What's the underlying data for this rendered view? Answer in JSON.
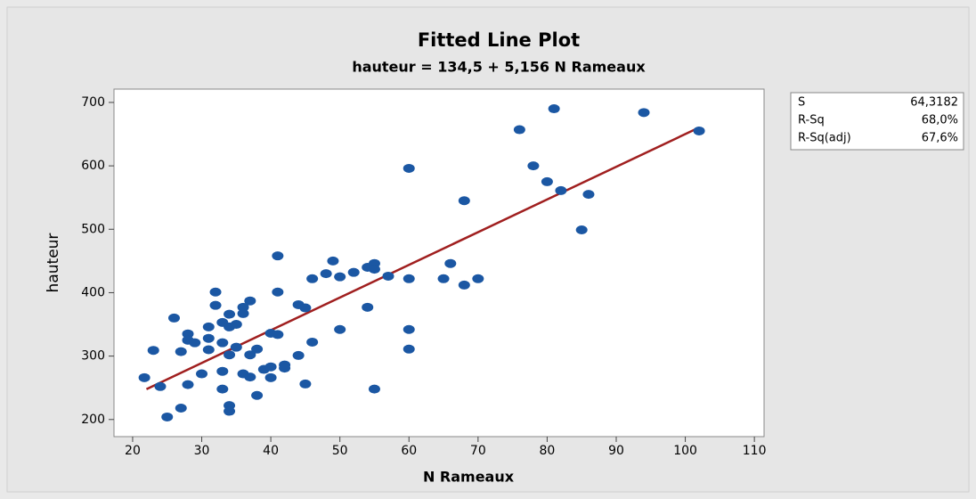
{
  "chart_data": {
    "type": "scatter",
    "title": "Fitted Line Plot",
    "subtitle": "hauteur = 134,5 + 5,156 N Rameaux",
    "xlabel": "N Rameaux",
    "ylabel": "hauteur",
    "color": "#1b57a3",
    "x": [
      21.7,
      23,
      24,
      25,
      26,
      27,
      27,
      28,
      28,
      28,
      29,
      30,
      31,
      31,
      31,
      32,
      32,
      33,
      33,
      33,
      33,
      34,
      34,
      34,
      34,
      34,
      35,
      35,
      36,
      36,
      36,
      37,
      37,
      37,
      38,
      38,
      39,
      40,
      40,
      40,
      41,
      41,
      41,
      42,
      42,
      44,
      44,
      45,
      45,
      46,
      46,
      48,
      49,
      50,
      50,
      52,
      54,
      54,
      55,
      55,
      55,
      57,
      60,
      60,
      60,
      60,
      65,
      66,
      68,
      68,
      70,
      76,
      78,
      80,
      81,
      82,
      85,
      86,
      94,
      102
    ],
    "values": [
      266,
      309,
      252,
      204,
      360,
      307,
      218,
      335,
      325,
      255,
      321,
      272,
      328,
      310,
      346,
      401,
      380,
      353,
      321,
      276,
      248,
      366,
      346,
      302,
      222,
      213,
      350,
      314,
      377,
      367,
      272,
      387,
      302,
      267,
      311,
      238,
      279,
      336,
      283,
      266,
      458,
      401,
      334,
      286,
      281,
      381,
      301,
      376,
      256,
      422,
      322,
      430,
      450,
      425,
      342,
      432,
      440,
      377,
      446,
      437,
      248,
      426,
      596,
      422,
      342,
      311,
      422,
      446,
      412,
      545,
      422,
      657,
      600,
      575,
      690,
      561,
      499,
      555,
      684,
      655
    ],
    "fit_line": {
      "x": [
        22,
        102
      ],
      "values": [
        247.9,
        660.4
      ],
      "color": "#a01f1f"
    },
    "xlim": [
      17.3,
      111.4
    ],
    "xticks": [
      20,
      30,
      40,
      50,
      60,
      70,
      80,
      90,
      100,
      110
    ],
    "ylim": [
      173,
      721
    ],
    "yticks": [
      200,
      300,
      400,
      500,
      600,
      700
    ],
    "stats": [
      [
        "S",
        "64,3182"
      ],
      [
        "R-Sq",
        "68,0%"
      ],
      [
        "R-Sq(adj)",
        "67,6%"
      ]
    ]
  }
}
